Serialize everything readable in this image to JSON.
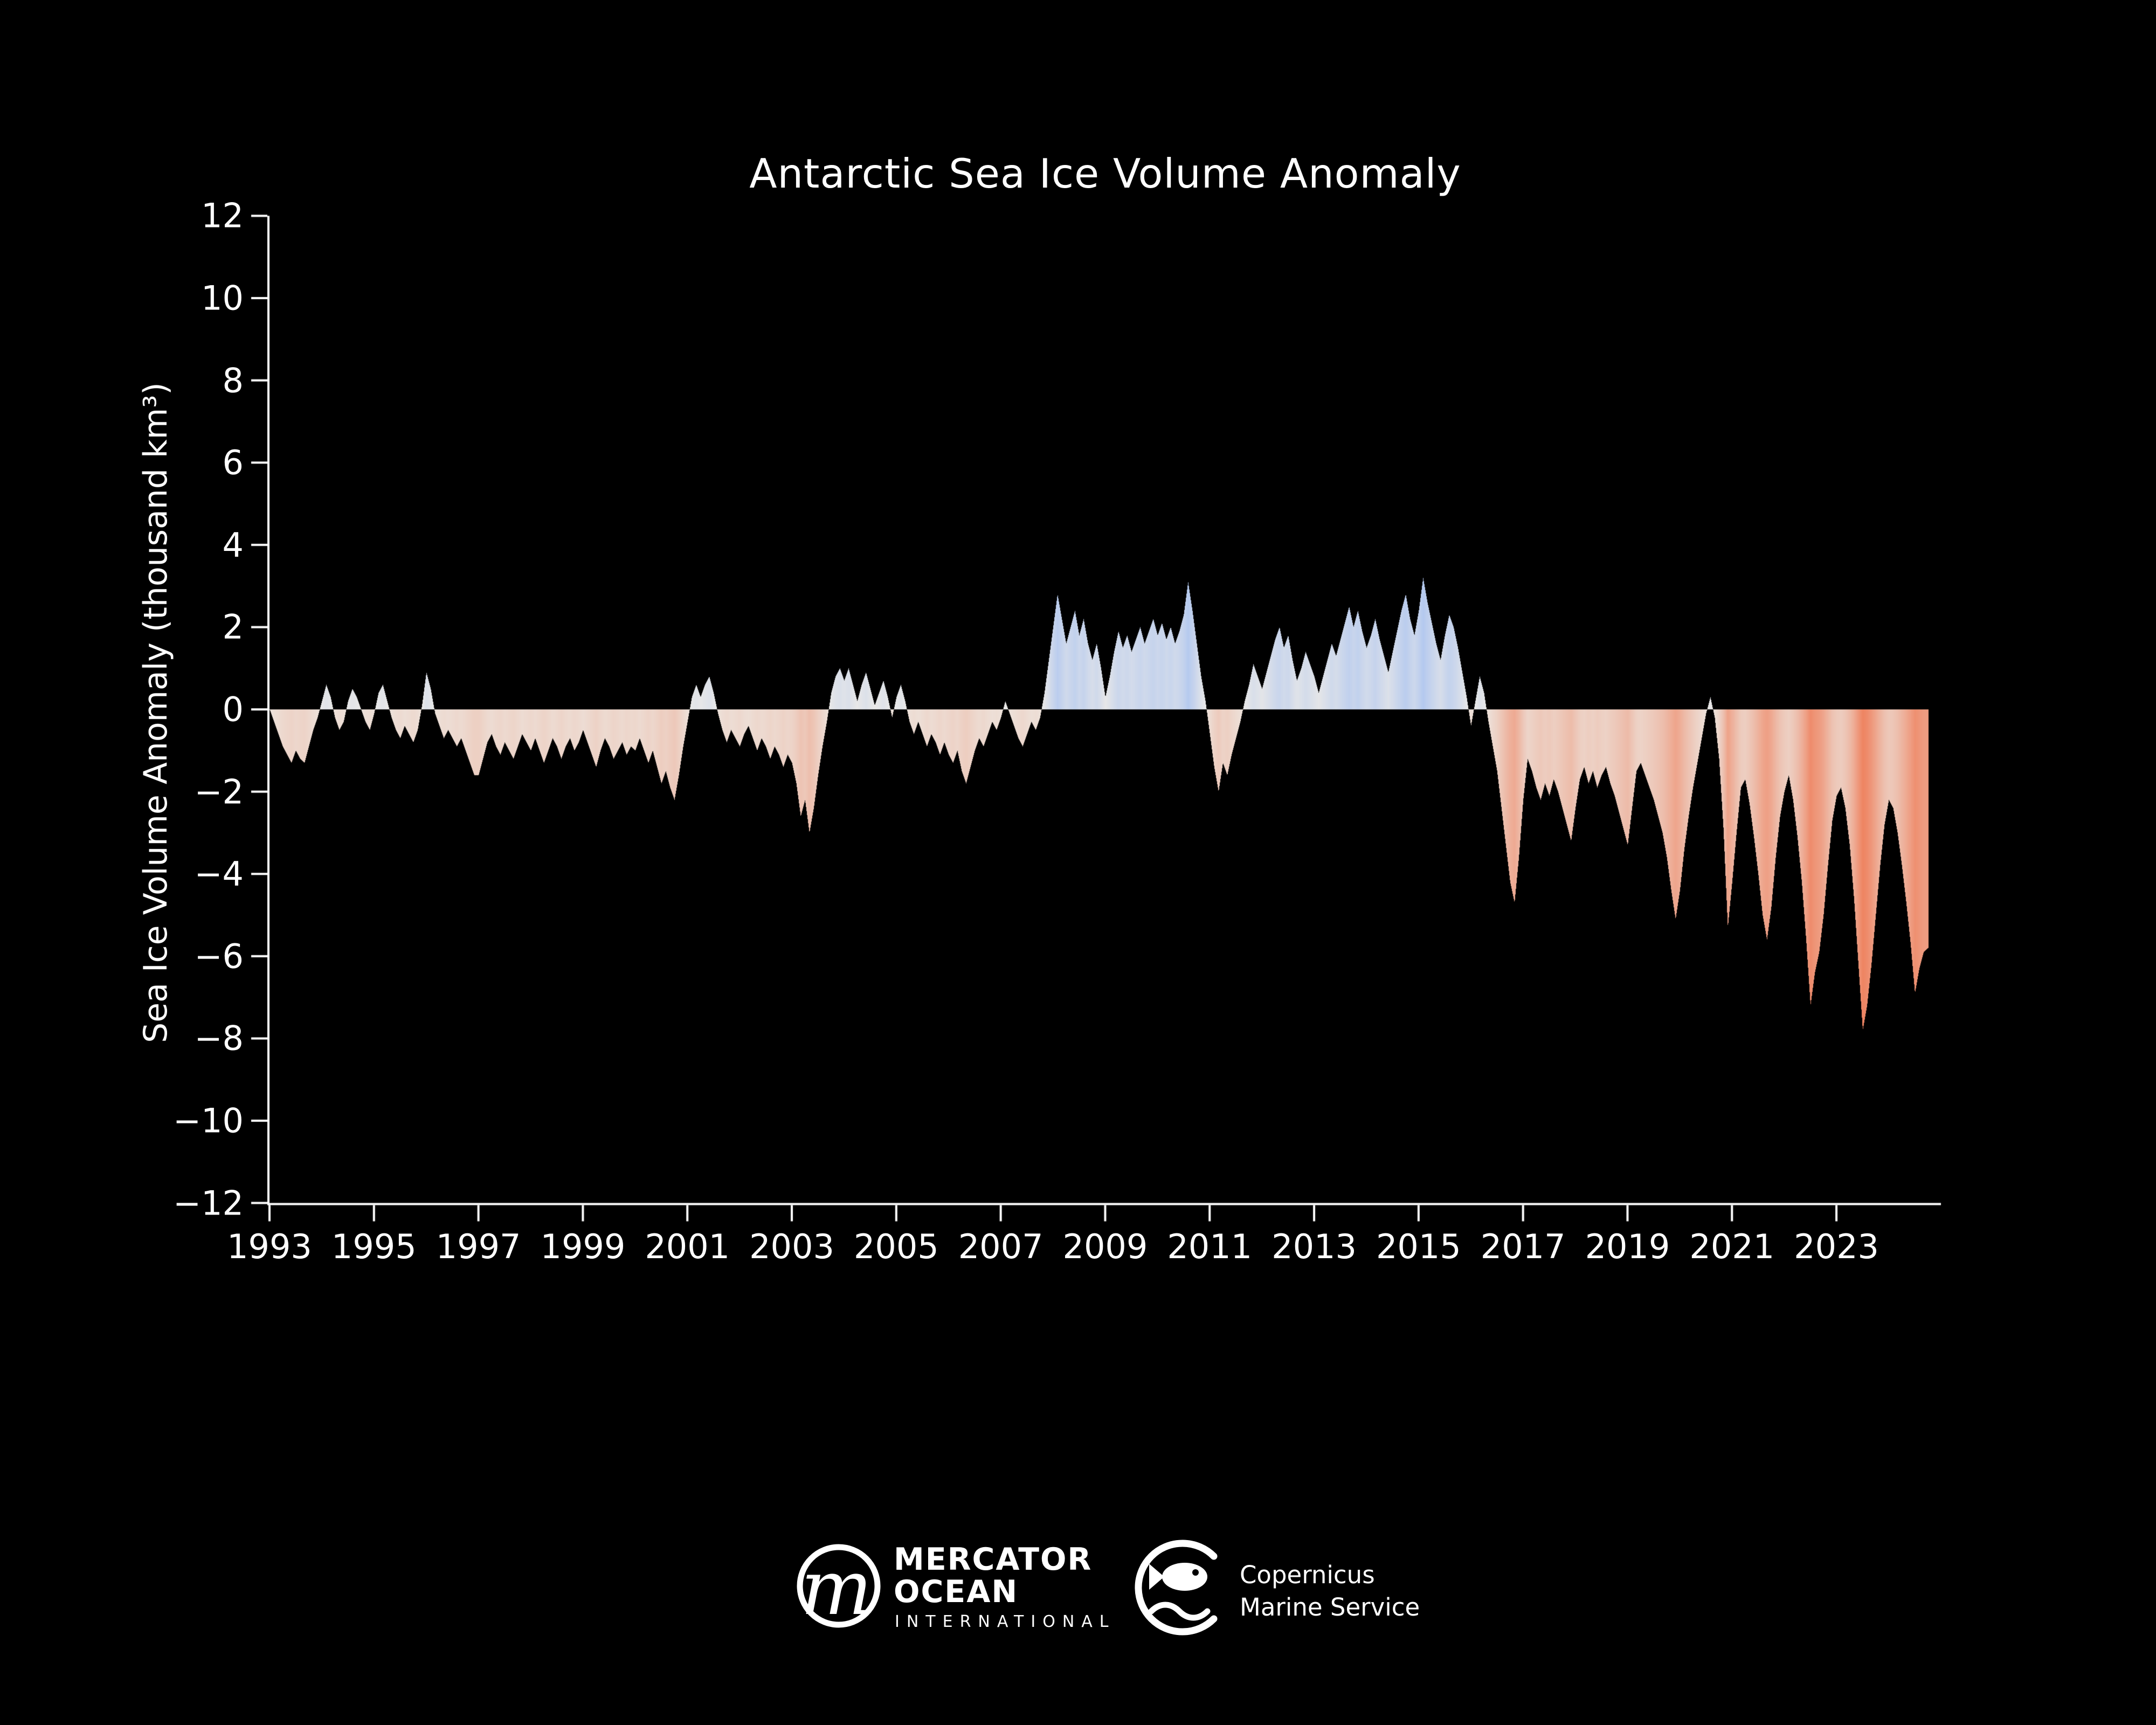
{
  "title": "Antarctic Sea Ice Volume Anomaly",
  "colors": {
    "background": "#000000",
    "text": "#ffffff",
    "axis": "#ffffff",
    "positive_zero": "#eceae7",
    "positive_max": "#b4c9ef",
    "negative_zero": "#ede3dc",
    "negative_max": "#ee825f"
  },
  "y_axis": {
    "label": "Sea Ice Volume Anomaly (thousand km³)",
    "tick_values": [
      12,
      10,
      8,
      6,
      4,
      2,
      0,
      -2,
      -4,
      -6,
      -8,
      -10,
      -12
    ],
    "tick_labels": [
      "12",
      "10",
      "8",
      "6",
      "4",
      "2",
      "0",
      "−2",
      "−4",
      "−6",
      "−8",
      "−10",
      "−12"
    ],
    "min": -12,
    "max": 12
  },
  "x_axis": {
    "tick_values": [
      1993,
      1995,
      1997,
      1999,
      2001,
      2003,
      2005,
      2007,
      2009,
      2011,
      2013,
      2015,
      2017,
      2019,
      2021,
      2023
    ],
    "tick_labels": [
      "1993",
      "1995",
      "1997",
      "1999",
      "2001",
      "2003",
      "2005",
      "2007",
      "2009",
      "2011",
      "2013",
      "2015",
      "2017",
      "2019",
      "2021",
      "2023"
    ],
    "min": 1993,
    "max": 2025
  },
  "footer": {
    "mercator": {
      "monogram": "m",
      "line1": "MERCATOR",
      "line2": "OCEAN",
      "line3": "INTERNATIONAL"
    },
    "copernicus": {
      "line1": "Copernicus",
      "line2": "Marine Service"
    }
  },
  "chart_data": {
    "type": "area",
    "title": "Antarctic Sea Ice Volume Anomaly",
    "xlabel": "",
    "ylabel": "Sea Ice Volume Anomaly (thousand km³)",
    "unit": "thousand km3",
    "xlim": [
      1993,
      2025
    ],
    "ylim": [
      -12,
      12
    ],
    "grid": false,
    "legend": "none",
    "fill_rule": "area between curve and zero, column color mapped from anomaly value (blue = positive, salmon = negative)",
    "start_year": 1993.0,
    "step_years": 0.0833333,
    "values": [
      0.0,
      -0.3,
      -0.6,
      -0.9,
      -1.1,
      -1.3,
      -1.0,
      -1.2,
      -1.3,
      -0.9,
      -0.5,
      -0.2,
      0.2,
      0.6,
      0.3,
      -0.2,
      -0.5,
      -0.3,
      0.2,
      0.5,
      0.3,
      0.0,
      -0.3,
      -0.5,
      -0.1,
      0.4,
      0.6,
      0.2,
      -0.2,
      -0.5,
      -0.7,
      -0.4,
      -0.6,
      -0.8,
      -0.5,
      0.1,
      0.9,
      0.5,
      -0.1,
      -0.4,
      -0.7,
      -0.5,
      -0.7,
      -0.9,
      -0.7,
      -1.0,
      -1.3,
      -1.6,
      -1.6,
      -1.2,
      -0.8,
      -0.6,
      -0.9,
      -1.1,
      -0.8,
      -1.0,
      -1.2,
      -0.9,
      -0.6,
      -0.8,
      -1.0,
      -0.7,
      -1.0,
      -1.3,
      -1.0,
      -0.7,
      -0.9,
      -1.2,
      -0.9,
      -0.7,
      -1.0,
      -0.8,
      -0.5,
      -0.8,
      -1.1,
      -1.4,
      -1.0,
      -0.7,
      -0.9,
      -1.2,
      -1.0,
      -0.8,
      -1.1,
      -0.9,
      -1.0,
      -0.7,
      -1.0,
      -1.3,
      -1.0,
      -1.4,
      -1.8,
      -1.5,
      -1.9,
      -2.2,
      -1.6,
      -0.9,
      -0.3,
      0.3,
      0.6,
      0.3,
      0.6,
      0.8,
      0.4,
      -0.1,
      -0.5,
      -0.8,
      -0.5,
      -0.7,
      -0.9,
      -0.6,
      -0.4,
      -0.7,
      -1.0,
      -0.7,
      -0.9,
      -1.2,
      -0.9,
      -1.1,
      -1.4,
      -1.1,
      -1.3,
      -1.8,
      -2.6,
      -2.2,
      -3.0,
      -2.4,
      -1.6,
      -0.9,
      -0.3,
      0.4,
      0.8,
      1.0,
      0.7,
      1.0,
      0.6,
      0.2,
      0.6,
      0.9,
      0.5,
      0.1,
      0.4,
      0.7,
      0.3,
      -0.2,
      0.3,
      0.6,
      0.2,
      -0.3,
      -0.6,
      -0.3,
      -0.6,
      -0.9,
      -0.6,
      -0.8,
      -1.1,
      -0.8,
      -1.1,
      -1.3,
      -1.0,
      -1.5,
      -1.8,
      -1.4,
      -1.0,
      -0.7,
      -0.9,
      -0.6,
      -0.3,
      -0.5,
      -0.2,
      0.2,
      -0.1,
      -0.4,
      -0.7,
      -0.9,
      -0.6,
      -0.3,
      -0.5,
      -0.2,
      0.4,
      1.2,
      2.0,
      2.8,
      2.2,
      1.6,
      2.0,
      2.4,
      1.8,
      2.2,
      1.6,
      1.2,
      1.6,
      1.0,
      0.3,
      0.8,
      1.4,
      1.9,
      1.5,
      1.8,
      1.4,
      1.7,
      2.0,
      1.6,
      1.9,
      2.2,
      1.8,
      2.1,
      1.7,
      2.0,
      1.6,
      1.9,
      2.3,
      3.1,
      2.4,
      1.6,
      0.8,
      0.2,
      -0.6,
      -1.4,
      -2.0,
      -1.3,
      -1.6,
      -1.1,
      -0.7,
      -0.3,
      0.2,
      0.6,
      1.1,
      0.8,
      0.5,
      0.9,
      1.3,
      1.7,
      2.0,
      1.5,
      1.8,
      1.2,
      0.7,
      1.0,
      1.4,
      1.1,
      0.8,
      0.4,
      0.8,
      1.2,
      1.6,
      1.3,
      1.7,
      2.1,
      2.5,
      2.0,
      2.4,
      1.9,
      1.5,
      1.8,
      2.2,
      1.7,
      1.3,
      0.9,
      1.4,
      1.9,
      2.4,
      2.8,
      2.2,
      1.8,
      2.4,
      3.2,
      2.6,
      2.1,
      1.6,
      1.2,
      1.8,
      2.3,
      2.0,
      1.5,
      0.9,
      0.3,
      -0.4,
      0.2,
      0.8,
      0.4,
      -0.3,
      -0.9,
      -1.5,
      -2.4,
      -3.3,
      -4.2,
      -4.7,
      -3.6,
      -2.2,
      -1.2,
      -1.5,
      -1.9,
      -2.2,
      -1.8,
      -2.1,
      -1.7,
      -2.0,
      -2.4,
      -2.8,
      -3.2,
      -2.4,
      -1.7,
      -1.4,
      -1.8,
      -1.5,
      -1.9,
      -1.6,
      -1.4,
      -1.8,
      -2.1,
      -2.5,
      -2.9,
      -3.3,
      -2.4,
      -1.5,
      -1.3,
      -1.6,
      -1.9,
      -2.2,
      -2.6,
      -3.0,
      -3.6,
      -4.4,
      -5.1,
      -4.4,
      -3.4,
      -2.6,
      -1.9,
      -1.3,
      -0.7,
      -0.1,
      0.3,
      -0.2,
      -1.2,
      -2.9,
      -5.3,
      -4.2,
      -3.0,
      -1.9,
      -1.7,
      -2.3,
      -3.1,
      -4.0,
      -5.0,
      -5.6,
      -4.8,
      -3.6,
      -2.6,
      -2.0,
      -1.6,
      -2.2,
      -3.1,
      -4.2,
      -5.6,
      -7.2,
      -6.4,
      -5.9,
      -5.0,
      -3.8,
      -2.7,
      -2.1,
      -1.9,
      -2.4,
      -3.3,
      -4.6,
      -6.2,
      -7.8,
      -7.2,
      -6.2,
      -5.0,
      -3.8,
      -2.8,
      -2.2,
      -2.4,
      -3.0,
      -3.8,
      -4.7,
      -5.7,
      -6.9,
      -6.3,
      -5.9,
      -5.8
    ]
  }
}
